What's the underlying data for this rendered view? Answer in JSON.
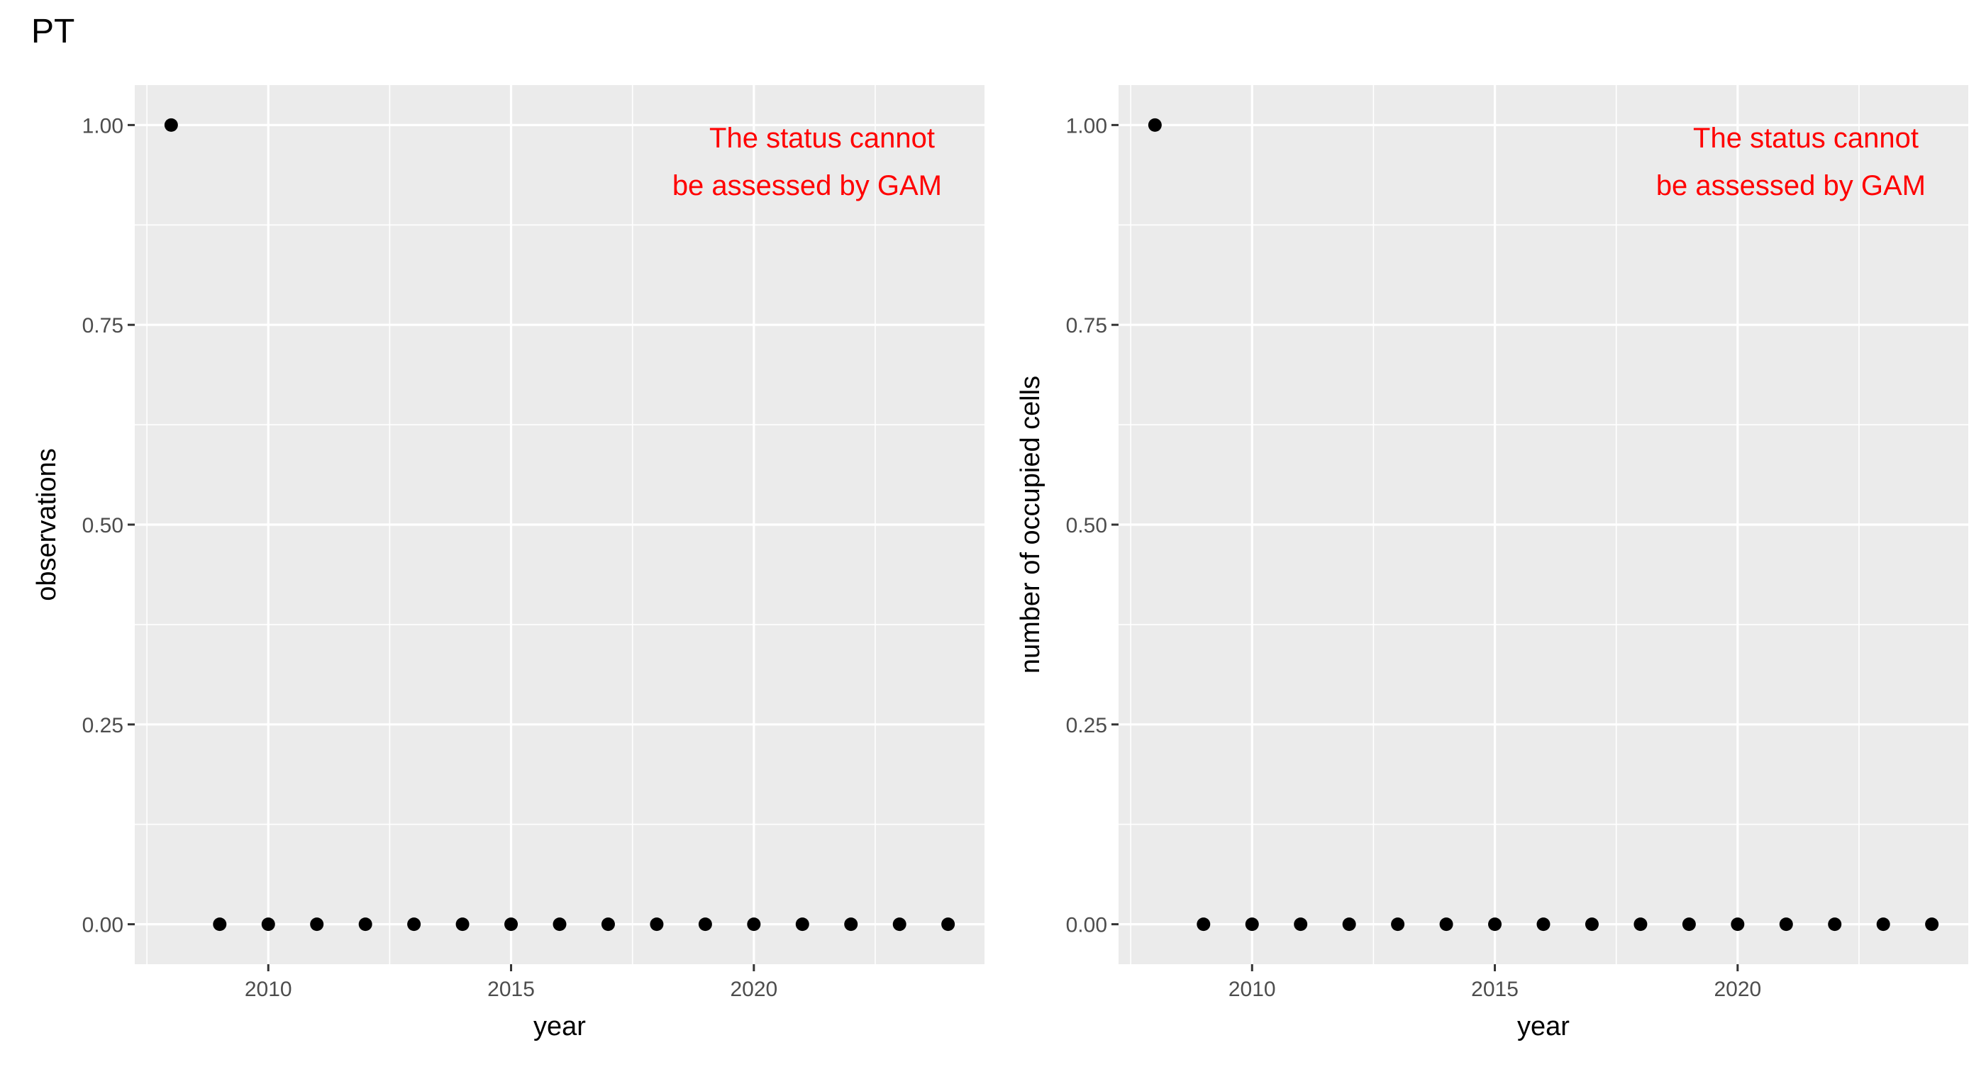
{
  "page": {
    "title": "PT"
  },
  "chart_data": [
    {
      "type": "scatter",
      "title": "",
      "xlabel": "year",
      "ylabel": "observations",
      "x": [
        2008,
        2009,
        2010,
        2011,
        2012,
        2013,
        2014,
        2015,
        2016,
        2017,
        2018,
        2019,
        2020,
        2021,
        2022,
        2023,
        2024
      ],
      "y": [
        1,
        0,
        0,
        0,
        0,
        0,
        0,
        0,
        0,
        0,
        0,
        0,
        0,
        0,
        0,
        0,
        0
      ],
      "xlim": [
        2007.25,
        2024.75
      ],
      "ylim": [
        -0.05,
        1.05
      ],
      "x_ticks": [
        2010,
        2015,
        2020
      ],
      "x_tick_labels": [
        "2010",
        "2015",
        "2020"
      ],
      "y_ticks": [
        0,
        0.25,
        0.5,
        0.75,
        1
      ],
      "y_tick_labels": [
        "0.00",
        "0.25",
        "0.50",
        "0.75",
        "1.00"
      ],
      "grid": true,
      "annotation": [
        "The status cannot",
        "be assessed by GAM"
      ],
      "colors": {
        "panel": "#ebebeb",
        "grid": "#ffffff",
        "point": "#000000",
        "annotation": "#ff0000"
      }
    },
    {
      "type": "scatter",
      "title": "",
      "xlabel": "year",
      "ylabel": "number of occupied cells",
      "x": [
        2008,
        2009,
        2010,
        2011,
        2012,
        2013,
        2014,
        2015,
        2016,
        2017,
        2018,
        2019,
        2020,
        2021,
        2022,
        2023,
        2024
      ],
      "y": [
        1,
        0,
        0,
        0,
        0,
        0,
        0,
        0,
        0,
        0,
        0,
        0,
        0,
        0,
        0,
        0,
        0
      ],
      "xlim": [
        2007.25,
        2024.75
      ],
      "ylim": [
        -0.05,
        1.05
      ],
      "x_ticks": [
        2010,
        2015,
        2020
      ],
      "x_tick_labels": [
        "2010",
        "2015",
        "2020"
      ],
      "y_ticks": [
        0,
        0.25,
        0.5,
        0.75,
        1
      ],
      "y_tick_labels": [
        "0.00",
        "0.25",
        "0.50",
        "0.75",
        "1.00"
      ],
      "grid": true,
      "annotation": [
        "The status cannot",
        "be assessed by GAM"
      ],
      "colors": {
        "panel": "#ebebeb",
        "grid": "#ffffff",
        "point": "#000000",
        "annotation": "#ff0000"
      }
    }
  ]
}
